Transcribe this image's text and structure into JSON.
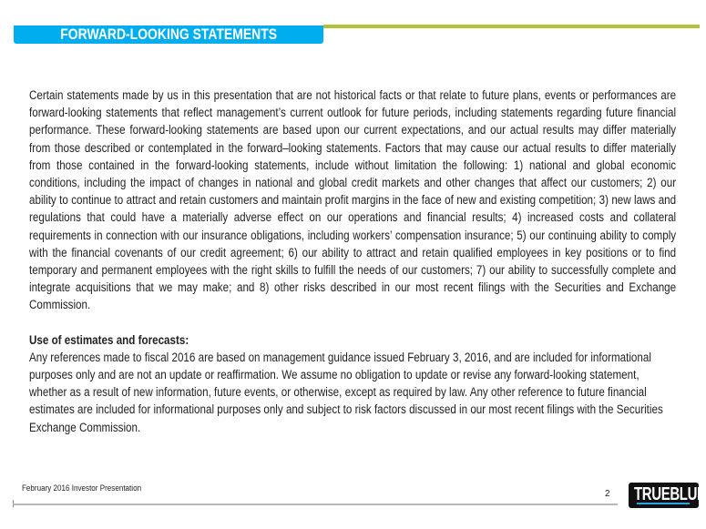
{
  "header": {
    "title": "FORWARD-LOOKING STATEMENTS",
    "accent_blue": "#00aeef",
    "accent_green": "#b2c232"
  },
  "body": {
    "paragraph": "Certain statements made by us in this presentation that are not historical facts or that relate to future plans, events or performances are forward-looking statements that reflect management’s current outlook for future periods, including statements regarding future financial performance. These forward-looking statements are based upon our current expectations, and our actual results may differ materially from those described or contemplated in the forward–looking statements. Factors that may cause our actual results to differ materially from those contained in the forward-looking statements, include without limitation the following: 1) national and global economic conditions, including the impact of changes in national and global credit markets and other changes that affect our customers; 2) our ability to continue to attract and retain customers and maintain profit margins in the face of new and existing competition; 3) new laws and regulations that could have a materially adverse effect on our operations and financial results; 4) increased costs and collateral requirements in connection with our insurance obligations, including workers’ compensation insurance; 5) our continuing ability to comply with the financial covenants of our credit agreement; 6) our ability to attract and retain qualified employees in key positions or to find temporary and permanent employees with the right skills to fulfill the needs of our customers; 7) our ability to successfully complete and integrate acquisitions that we may make; and 8) other risks described in our most recent filings with the Securities and Exchange Commission.",
    "estimates_heading": "Use of estimates and forecasts:",
    "estimates_paragraph": "Any references made to fiscal 2016 are based on management guidance issued February 3, 2016, and are included for informational purposes only and are not an update or reaffirmation. We assume no obligation to update or revise any forward-looking statement, whether as a result of new information, future events, or otherwise, except as required by law. Any other reference to future financial estimates are included for informational purposes only and subject to risk factors discussed in our most recent filings with the Securities Exchange Commission."
  },
  "footer": {
    "text": "February 2016 Investor Presentation",
    "page_number": "2",
    "logo_text": "TRUEBLUE"
  }
}
